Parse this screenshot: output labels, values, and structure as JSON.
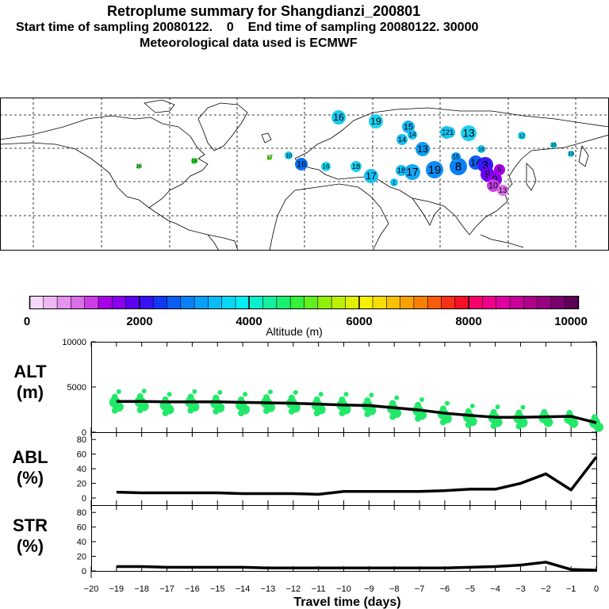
{
  "title": {
    "line1": "Retroplume summary for Shangdianzi_200801",
    "line2": "Start time of sampling 20080122.    0    End time of sampling 20080122. 30000",
    "line3": "Meteorological data used is ECMWF"
  },
  "colorbar": {
    "ticks": [
      "0",
      "2000",
      "4000",
      "6000",
      "8000",
      "10000"
    ],
    "label": "Altitude (m)",
    "colors": [
      "#f5d8f8",
      "#efb8f4",
      "#e692ee",
      "#dc6ee8",
      "#cc3de6",
      "#a800e8",
      "#8a00ee",
      "#5c00f2",
      "#3a10f4",
      "#1238f4",
      "#0a5ef4",
      "#0880f6",
      "#0aa0f8",
      "#08bcf8",
      "#06d8f8",
      "#06ecf4",
      "#0af0cc",
      "#12f0a0",
      "#1af070",
      "#36f03a",
      "#62f020",
      "#90f00a",
      "#bcf004",
      "#e0f004",
      "#f8f004",
      "#f8dc04",
      "#f8c004",
      "#f8a004",
      "#f88004",
      "#f85c0a",
      "#f83018",
      "#f81028",
      "#f8006a",
      "#f0008a",
      "#e000a2",
      "#c80098",
      "#b0008a",
      "#980080",
      "#7a006e",
      "#5c0058"
    ]
  },
  "map_labels": [
    "16",
    "19",
    "15",
    "14",
    "12",
    "13",
    "21",
    "13",
    "14",
    "17",
    "18",
    "16",
    "18",
    "17",
    "19",
    "8",
    "14",
    "3",
    "9",
    "9",
    "5",
    "10",
    "13",
    "16",
    "10",
    "12",
    "2",
    "15",
    "16",
    "16",
    "19",
    "18",
    "17",
    "16"
  ],
  "chart_data": {
    "type": "line",
    "x_label": "Travel time (days)",
    "x_ticks": [
      "−20",
      "−19",
      "−18",
      "−17",
      "−16",
      "−15",
      "−14",
      "−13",
      "−12",
      "−11",
      "−10",
      "−9",
      "−8",
      "−7",
      "−6",
      "−5",
      "−4",
      "−3",
      "−2",
      "−1",
      "0"
    ],
    "x_range": [
      -20,
      0
    ],
    "panels": [
      {
        "label_line1": "ALT",
        "label_line2": "(m)",
        "ylim": [
          0,
          10000
        ],
        "y_ticks": [
          "10000",
          "5000",
          "0"
        ],
        "y_tick_values": [
          10000,
          5000,
          0
        ],
        "x": [
          -19,
          -18,
          -17,
          -16,
          -15,
          -14,
          -13,
          -12,
          -11,
          -10,
          -9,
          -8,
          -7,
          -6,
          -5,
          -4,
          -3,
          -2,
          -1,
          0
        ],
        "line": [
          3400,
          3400,
          3350,
          3350,
          3350,
          3300,
          3250,
          3200,
          3100,
          3000,
          2950,
          2700,
          2450,
          2100,
          1850,
          1650,
          1650,
          1700,
          1750,
          1050
        ],
        "dots": [
          3300,
          3350,
          3000,
          3300,
          3200,
          3000,
          3250,
          3200,
          3000,
          3000,
          2900,
          2600,
          2400,
          2000,
          1700,
          1600,
          1550,
          1600,
          1500,
          1050
        ],
        "dot_color": "#22e86a"
      },
      {
        "label_line1": "ABL",
        "label_line2": "(%)",
        "ylim": [
          0,
          90
        ],
        "y_ticks": [
          "80",
          "60",
          "40",
          "20",
          "0"
        ],
        "y_tick_values": [
          80,
          60,
          40,
          20,
          0
        ],
        "x": [
          -19,
          -18,
          -17,
          -16,
          -15,
          -14,
          -13,
          -12,
          -11,
          -10,
          -9,
          -8,
          -7,
          -6,
          -5,
          -4,
          -3,
          -2,
          -1,
          0
        ],
        "line": [
          8,
          7,
          7,
          7,
          7,
          6,
          6,
          6,
          5,
          9,
          9,
          9,
          9,
          10,
          12,
          12,
          20,
          33,
          11,
          56
        ]
      },
      {
        "label_line1": "STR",
        "label_line2": "(%)",
        "ylim": [
          0,
          90
        ],
        "y_ticks": [
          "80",
          "60",
          "40",
          "20",
          "0"
        ],
        "y_tick_values": [
          80,
          60,
          40,
          20,
          0
        ],
        "x": [
          -19,
          -18,
          -17,
          -16,
          -15,
          -14,
          -13,
          -12,
          -11,
          -10,
          -9,
          -8,
          -7,
          -6,
          -5,
          -4,
          -3,
          -2,
          -1,
          0
        ],
        "line": [
          6,
          6,
          5,
          5,
          5,
          5,
          4,
          4,
          4,
          4,
          4,
          4,
          4,
          4,
          5,
          6,
          8,
          12,
          2,
          1
        ]
      }
    ]
  }
}
